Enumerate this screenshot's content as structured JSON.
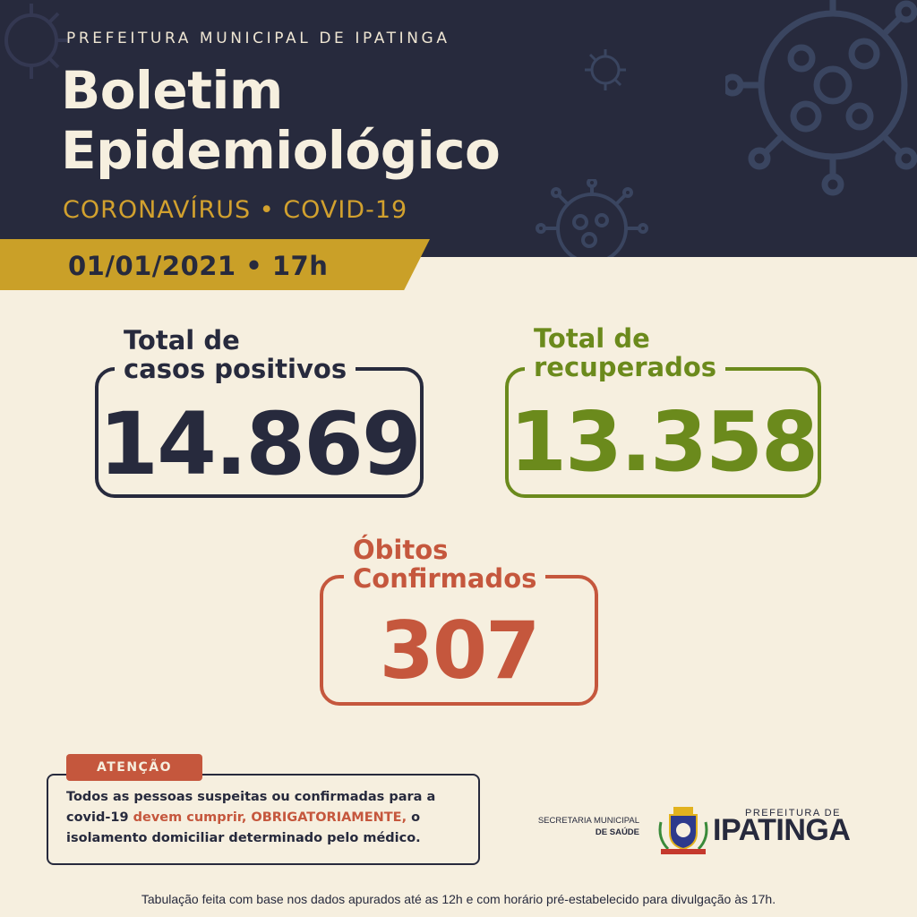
{
  "header": {
    "organization": "PREFEITURA MUNICIPAL DE IPATINGA",
    "title_line1": "Boletim",
    "title_line2": "Epidemiológico",
    "subtitle": "CORONAVÍRUS • COVID-19",
    "date": "01/01/2021 • 17h"
  },
  "stats": {
    "positive": {
      "label_line1": "Total de",
      "label_line2": "casos positivos",
      "value": "14.869",
      "color": "#272a3d"
    },
    "recovered": {
      "label_line1": "Total de",
      "label_line2": "recuperados",
      "value": "13.358",
      "color": "#6b8a1c"
    },
    "deaths": {
      "label_line1": "Óbitos",
      "label_line2": "Confirmados",
      "value": "307",
      "color": "#c5573d"
    }
  },
  "attention": {
    "tag": "ATENÇÃO",
    "text_1": "Todos as pessoas suspeitas ou confirmadas para a covid-19 ",
    "text_2": "devem cumprir, OBRIGATORIAMENTE,",
    "text_3": " o isolamento domiciliar determinado pelo médico."
  },
  "logo": {
    "secretaria_line1": "SECRETARIA MUNICIPAL",
    "secretaria_line2": "DE SAÚDE",
    "prefeitura_small": "PREFEITURA DE",
    "prefeitura_big": "IPATINGA",
    "crest_icon": "city-crest-icon"
  },
  "footer": "Tabulação feita com base nos dados apurados até as 12h e com horário pré-estabelecido para divulgação às 17h.",
  "colors": {
    "navy": "#272a3d",
    "cream": "#f6efdf",
    "gold": "#caa028",
    "green": "#6b8a1c",
    "red": "#c5573d"
  }
}
